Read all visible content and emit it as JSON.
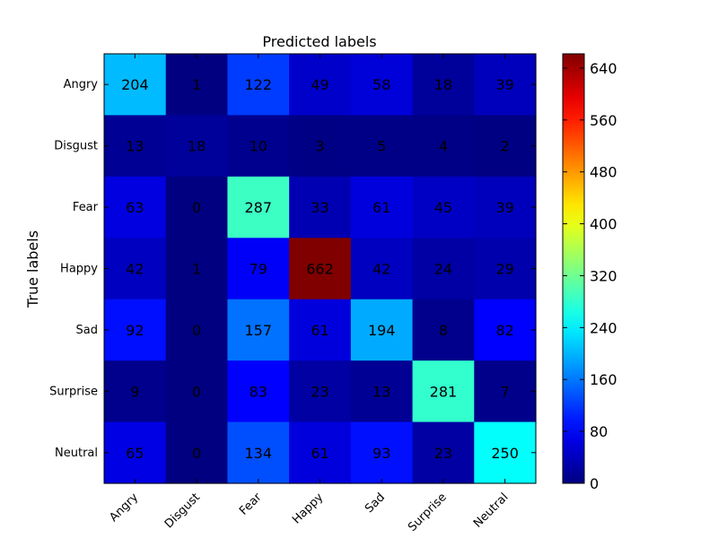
{
  "chart_data": {
    "type": "heatmap",
    "title": "Predicted labels",
    "xlabel": "",
    "ylabel": "True labels",
    "x_categories": [
      "Angry",
      "Disgust",
      "Fear",
      "Happy",
      "Sad",
      "Surprise",
      "Neutral"
    ],
    "y_categories": [
      "Angry",
      "Disgust",
      "Fear",
      "Happy",
      "Sad",
      "Surprise",
      "Neutral"
    ],
    "values": [
      [
        204,
        1,
        122,
        49,
        58,
        18,
        39
      ],
      [
        13,
        18,
        10,
        3,
        5,
        4,
        2
      ],
      [
        63,
        0,
        287,
        33,
        61,
        45,
        39
      ],
      [
        42,
        1,
        79,
        662,
        42,
        24,
        29
      ],
      [
        92,
        0,
        157,
        61,
        194,
        8,
        82
      ],
      [
        9,
        0,
        83,
        23,
        13,
        281,
        7
      ],
      [
        65,
        0,
        134,
        61,
        93,
        23,
        250
      ]
    ],
    "colormap": "jet",
    "color_range": [
      0,
      662
    ],
    "colorbar_ticks": [
      0,
      80,
      160,
      240,
      320,
      400,
      480,
      560,
      640
    ],
    "x_tick_rotation_deg": 45,
    "grid": false
  }
}
